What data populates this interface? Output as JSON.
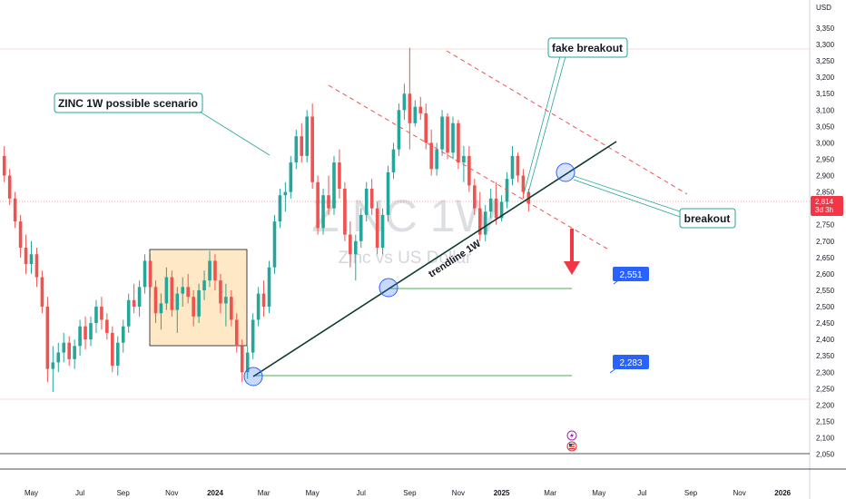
{
  "chart_data": {
    "type": "candlestick",
    "symbol": "ZINC 1W",
    "subtitle": "Zinc vs US Dollar",
    "currency": "USD",
    "y_ticks": [
      2050,
      2100,
      2150,
      2200,
      2250,
      2300,
      2350,
      2400,
      2450,
      2500,
      2550,
      2600,
      2650,
      2700,
      2750,
      2800,
      2850,
      2900,
      2950,
      3000,
      3050,
      3100,
      3150,
      3200,
      3250,
      3300,
      3350
    ],
    "ylim": [
      2015,
      3390
    ],
    "x_ticks": [
      {
        "label": "May",
        "bold": false
      },
      {
        "label": "Jul",
        "bold": false
      },
      {
        "label": "Sep",
        "bold": false
      },
      {
        "label": "Nov",
        "bold": false
      },
      {
        "label": "2024",
        "bold": true
      },
      {
        "label": "Mar",
        "bold": false
      },
      {
        "label": "May",
        "bold": false
      },
      {
        "label": "Jul",
        "bold": false
      },
      {
        "label": "Sep",
        "bold": false
      },
      {
        "label": "Nov",
        "bold": false
      },
      {
        "label": "2025",
        "bold": true
      },
      {
        "label": "Mar",
        "bold": false
      },
      {
        "label": "May",
        "bold": false
      },
      {
        "label": "Jul",
        "bold": false
      },
      {
        "label": "Sep",
        "bold": false
      },
      {
        "label": "Nov",
        "bold": false
      },
      {
        "label": "2026",
        "bold": true
      }
    ],
    "x_tick_weeks": [
      0,
      9,
      17,
      26,
      34,
      43,
      52,
      61,
      70,
      79,
      87,
      96,
      105,
      113,
      122,
      131,
      139
    ],
    "weeks_before_first_tick": 5,
    "candles": [
      [
        2960,
        2990,
        2880,
        2900
      ],
      [
        2900,
        2920,
        2810,
        2830
      ],
      [
        2830,
        2850,
        2740,
        2760
      ],
      [
        2760,
        2780,
        2650,
        2680
      ],
      [
        2680,
        2720,
        2600,
        2630
      ],
      [
        2630,
        2700,
        2600,
        2660
      ],
      [
        2660,
        2680,
        2560,
        2590
      ],
      [
        2590,
        2610,
        2480,
        2500
      ],
      [
        2500,
        2530,
        2270,
        2310
      ],
      [
        2310,
        2380,
        2240,
        2330
      ],
      [
        2330,
        2390,
        2300,
        2360
      ],
      [
        2360,
        2420,
        2330,
        2390
      ],
      [
        2390,
        2410,
        2320,
        2340
      ],
      [
        2340,
        2400,
        2310,
        2380
      ],
      [
        2380,
        2460,
        2350,
        2440
      ],
      [
        2440,
        2470,
        2370,
        2400
      ],
      [
        2400,
        2470,
        2380,
        2450
      ],
      [
        2450,
        2520,
        2420,
        2500
      ],
      [
        2500,
        2530,
        2430,
        2460
      ],
      [
        2460,
        2480,
        2400,
        2420
      ],
      [
        2420,
        2440,
        2300,
        2320
      ],
      [
        2320,
        2410,
        2290,
        2390
      ],
      [
        2390,
        2460,
        2360,
        2440
      ],
      [
        2440,
        2540,
        2420,
        2520
      ],
      [
        2520,
        2570,
        2480,
        2500
      ],
      [
        2500,
        2580,
        2470,
        2560
      ],
      [
        2560,
        2660,
        2540,
        2640
      ],
      [
        2640,
        2660,
        2530,
        2560
      ],
      [
        2560,
        2580,
        2450,
        2480
      ],
      [
        2480,
        2540,
        2430,
        2510
      ],
      [
        2510,
        2620,
        2490,
        2590
      ],
      [
        2590,
        2610,
        2470,
        2490
      ],
      [
        2490,
        2560,
        2420,
        2540
      ],
      [
        2540,
        2590,
        2500,
        2560
      ],
      [
        2560,
        2600,
        2510,
        2530
      ],
      [
        2530,
        2550,
        2440,
        2470
      ],
      [
        2470,
        2570,
        2450,
        2550
      ],
      [
        2550,
        2610,
        2520,
        2580
      ],
      [
        2580,
        2670,
        2560,
        2640
      ],
      [
        2640,
        2660,
        2550,
        2580
      ],
      [
        2580,
        2600,
        2480,
        2510
      ],
      [
        2510,
        2570,
        2440,
        2530
      ],
      [
        2530,
        2550,
        2440,
        2460
      ],
      [
        2460,
        2480,
        2360,
        2380
      ],
      [
        2380,
        2400,
        2270,
        2300
      ],
      [
        2300,
        2380,
        2280,
        2360
      ],
      [
        2360,
        2480,
        2340,
        2460
      ],
      [
        2460,
        2560,
        2440,
        2540
      ],
      [
        2540,
        2580,
        2470,
        2500
      ],
      [
        2500,
        2640,
        2480,
        2620
      ],
      [
        2620,
        2780,
        2600,
        2760
      ],
      [
        2760,
        2860,
        2740,
        2840
      ],
      [
        2840,
        2880,
        2790,
        2850
      ],
      [
        2850,
        2960,
        2830,
        2940
      ],
      [
        2940,
        3040,
        2920,
        3020
      ],
      [
        3020,
        3060,
        2940,
        2960
      ],
      [
        2960,
        3100,
        2940,
        3080
      ],
      [
        3080,
        3120,
        2860,
        2880
      ],
      [
        2880,
        2900,
        2720,
        2740
      ],
      [
        2740,
        2860,
        2720,
        2840
      ],
      [
        2840,
        2900,
        2780,
        2800
      ],
      [
        2800,
        2960,
        2780,
        2940
      ],
      [
        2940,
        2980,
        2830,
        2860
      ],
      [
        2860,
        2880,
        2700,
        2720
      ],
      [
        2720,
        2760,
        2620,
        2660
      ],
      [
        2660,
        2720,
        2580,
        2700
      ],
      [
        2700,
        2800,
        2680,
        2780
      ],
      [
        2780,
        2880,
        2760,
        2860
      ],
      [
        2860,
        2890,
        2780,
        2800
      ],
      [
        2800,
        2820,
        2660,
        2680
      ],
      [
        2680,
        2800,
        2660,
        2780
      ],
      [
        2780,
        2930,
        2760,
        2910
      ],
      [
        2910,
        3000,
        2890,
        2980
      ],
      [
        2980,
        3120,
        2960,
        3100
      ],
      [
        3100,
        3180,
        3070,
        3150
      ],
      [
        3150,
        3290,
        2980,
        3060
      ],
      [
        3060,
        3130,
        3050,
        3110
      ],
      [
        3110,
        3140,
        3070,
        3090
      ],
      [
        3090,
        3120,
        2980,
        3000
      ],
      [
        3000,
        3040,
        2900,
        2920
      ],
      [
        2920,
        3000,
        2900,
        2980
      ],
      [
        2980,
        3100,
        2960,
        3080
      ],
      [
        3080,
        3090,
        2950,
        2970
      ],
      [
        2970,
        3080,
        2950,
        3060
      ],
      [
        3060,
        3070,
        2920,
        2940
      ],
      [
        2940,
        2990,
        2880,
        2960
      ],
      [
        2960,
        2990,
        2850,
        2870
      ],
      [
        2870,
        2890,
        2780,
        2800
      ],
      [
        2800,
        2850,
        2700,
        2720
      ],
      [
        2720,
        2810,
        2700,
        2790
      ],
      [
        2790,
        2860,
        2770,
        2830
      ],
      [
        2830,
        2880,
        2750,
        2770
      ],
      [
        2770,
        2840,
        2760,
        2820
      ],
      [
        2820,
        2910,
        2800,
        2890
      ],
      [
        2890,
        2990,
        2870,
        2960
      ],
      [
        2960,
        2970,
        2880,
        2900
      ],
      [
        2900,
        2920,
        2830,
        2850
      ],
      [
        2850,
        2860,
        2790,
        2814
      ]
    ]
  },
  "annotations": {
    "scenario_label": "ZINC 1W possible scenario",
    "fake_breakout_label": "fake breakout",
    "breakout_label": "breakout",
    "trendline_label": "trendline 1W",
    "level_upper": "2,551",
    "level_lower": "2,283",
    "current_price": "2,814",
    "countdown": "3d 3h",
    "event_icon": "lightning-icon",
    "flag_icon": "us-flag-icon"
  },
  "colors": {
    "up": "#26a69a",
    "down": "#ef5350",
    "callout_border": "#26a69a",
    "level_line": "#4caf50",
    "level_tag": "#2962ff",
    "trendline": "#0b3a2e",
    "channel": "#ef5350",
    "range_box": "#ffe0b2",
    "marker": "#2962ff"
  }
}
